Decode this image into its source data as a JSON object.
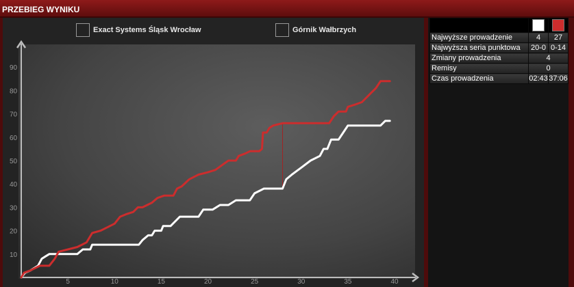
{
  "title": "PRZEBIEG WYNIKU",
  "colors": {
    "home": "#ffffff",
    "away": "#cc2d2d",
    "accent": "#8e1a1a"
  },
  "legend": {
    "home": "Exact Systems Śląsk Wrocław",
    "away": "Górnik Wałbrzych"
  },
  "stats": {
    "rows": [
      {
        "label": "Najwyższe prowadzenie",
        "home": "4",
        "away": "27"
      },
      {
        "label": "Najwyższa seria punktowa",
        "home": "20-0",
        "away": "0-14"
      },
      {
        "label": "Zmiany prowadzenia",
        "value": "4"
      },
      {
        "label": "Remisy",
        "value": "0"
      },
      {
        "label": "Czas prowadzenia",
        "home": "02:43",
        "away": "37:06"
      }
    ]
  },
  "chart_data": {
    "type": "line",
    "x_ticks": [
      "5",
      "10",
      "15",
      "20",
      "25",
      "30",
      "35",
      "40"
    ],
    "y_ticks": [
      "10",
      "20",
      "30",
      "40",
      "50",
      "60",
      "70",
      "80",
      "90"
    ],
    "xlim": [
      0,
      40
    ],
    "ylim": [
      0,
      100
    ],
    "series": [
      {
        "name": "Exact Systems Śląsk Wrocław",
        "color": "#ffffff",
        "points": [
          [
            0,
            0
          ],
          [
            0.4,
            2
          ],
          [
            1,
            3
          ],
          [
            1.8,
            5
          ],
          [
            2.2,
            8
          ],
          [
            2.6,
            9
          ],
          [
            3,
            10
          ],
          [
            5,
            10
          ],
          [
            6,
            10
          ],
          [
            6.6,
            12
          ],
          [
            7.4,
            12
          ],
          [
            7.6,
            14
          ],
          [
            9,
            14
          ],
          [
            10,
            14
          ],
          [
            12,
            14
          ],
          [
            12.6,
            14
          ],
          [
            13,
            16
          ],
          [
            13.6,
            18
          ],
          [
            14,
            18
          ],
          [
            14.3,
            20
          ],
          [
            15,
            20
          ],
          [
            15.2,
            22
          ],
          [
            16,
            22
          ],
          [
            16.5,
            24
          ],
          [
            17,
            26
          ],
          [
            19,
            26
          ],
          [
            19.5,
            29
          ],
          [
            20.5,
            29
          ],
          [
            21.3,
            31
          ],
          [
            22.2,
            31
          ],
          [
            23,
            33
          ],
          [
            24.5,
            33
          ],
          [
            25,
            36
          ],
          [
            25.5,
            37
          ],
          [
            26,
            38
          ],
          [
            27,
            38
          ],
          [
            28,
            38
          ],
          [
            28.4,
            42
          ],
          [
            29,
            44
          ],
          [
            30,
            47
          ],
          [
            31,
            50
          ],
          [
            32,
            52
          ],
          [
            32.4,
            55
          ],
          [
            32.8,
            55
          ],
          [
            33.2,
            59
          ],
          [
            34,
            59
          ],
          [
            34.5,
            62
          ],
          [
            35,
            65
          ],
          [
            36,
            65
          ],
          [
            38,
            65
          ],
          [
            38.5,
            65
          ],
          [
            39,
            67
          ],
          [
            39.5,
            67
          ]
        ]
      },
      {
        "name": "Górnik Wałbrzych",
        "color": "#cc2d2d",
        "points": [
          [
            0,
            0
          ],
          [
            0.3,
            2
          ],
          [
            1,
            3
          ],
          [
            2,
            5
          ],
          [
            3,
            5
          ],
          [
            3.6,
            8
          ],
          [
            4,
            11
          ],
          [
            5,
            12
          ],
          [
            6,
            13
          ],
          [
            6.5,
            14
          ],
          [
            7,
            15
          ],
          [
            7.6,
            19
          ],
          [
            8.5,
            20
          ],
          [
            9,
            21
          ],
          [
            10,
            23
          ],
          [
            10.6,
            26
          ],
          [
            11.2,
            27
          ],
          [
            12,
            28
          ],
          [
            12.5,
            30
          ],
          [
            13,
            30
          ],
          [
            13.5,
            31
          ],
          [
            14,
            32
          ],
          [
            14.3,
            33
          ],
          [
            14.6,
            34
          ],
          [
            15.3,
            35
          ],
          [
            16.3,
            35
          ],
          [
            16.7,
            38
          ],
          [
            17.2,
            39
          ],
          [
            18,
            42
          ],
          [
            18.5,
            43
          ],
          [
            19,
            44
          ],
          [
            20,
            45
          ],
          [
            20.8,
            46
          ],
          [
            21.5,
            48
          ],
          [
            22.2,
            50
          ],
          [
            23,
            50
          ],
          [
            23.3,
            52
          ],
          [
            24,
            53
          ],
          [
            24.5,
            54
          ],
          [
            25.5,
            54
          ],
          [
            25.8,
            55
          ],
          [
            25.9,
            62
          ],
          [
            26.3,
            62
          ],
          [
            26.6,
            64
          ],
          [
            27,
            65
          ],
          [
            27.5,
            65.5
          ],
          [
            28,
            66
          ],
          [
            29,
            66
          ],
          [
            33,
            66
          ],
          [
            33.5,
            69
          ],
          [
            34,
            71
          ],
          [
            34.8,
            71
          ],
          [
            35,
            73
          ],
          [
            35.8,
            74
          ],
          [
            36.5,
            75
          ],
          [
            37,
            77
          ],
          [
            37.5,
            79
          ],
          [
            38,
            81
          ],
          [
            38.5,
            84
          ],
          [
            39.5,
            84
          ]
        ]
      }
    ]
  }
}
